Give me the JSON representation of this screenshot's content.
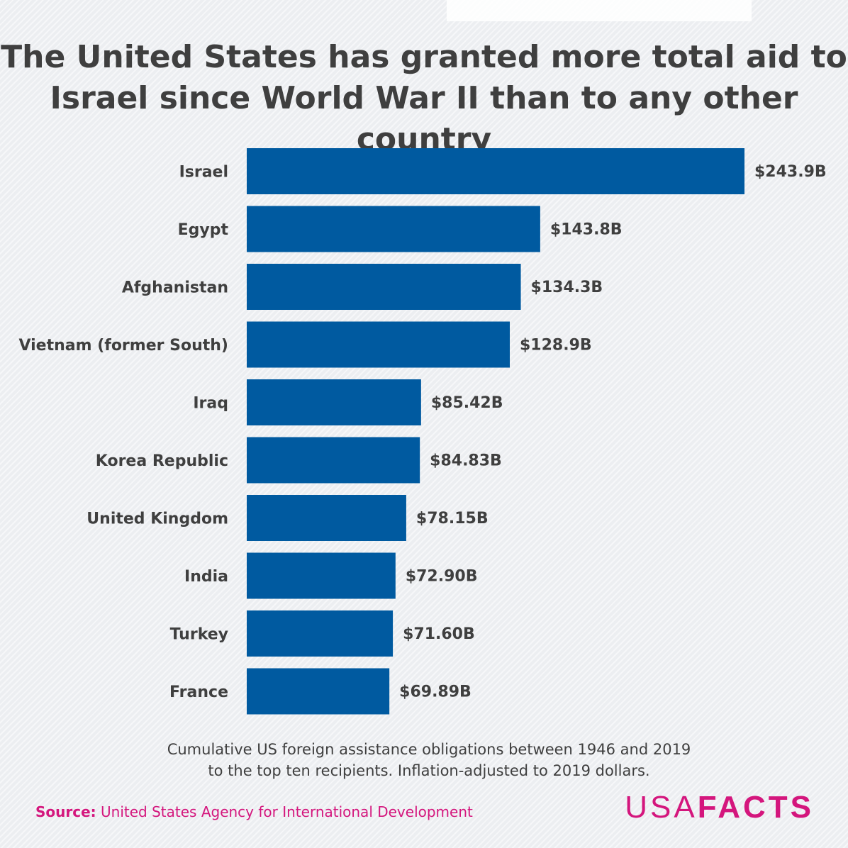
{
  "title": {
    "line1": "The United States has granted more total aid to",
    "line2": "Israel since World War II than to any other country"
  },
  "chart_data": {
    "type": "bar",
    "orientation": "horizontal",
    "categories": [
      "Israel",
      "Egypt",
      "Afghanistan",
      "Vietnam (former South)",
      "Iraq",
      "Korea Republic",
      "United Kingdom",
      "India",
      "Turkey",
      "France"
    ],
    "values": [
      243.9,
      143.8,
      134.3,
      128.9,
      85.42,
      84.83,
      78.15,
      72.9,
      71.6,
      69.89
    ],
    "value_labels": [
      "$243.9B",
      "$143.8B",
      "$134.3B",
      "$128.9B",
      "$85.42B",
      "$84.83B",
      "$78.15B",
      "$72.90B",
      "$71.60B",
      "$69.89B"
    ],
    "bar_color": "#005aa0",
    "grid": false,
    "xlim": [
      0,
      243.9
    ]
  },
  "note": {
    "line1": "Cumulative US foreign assistance obligations between 1946 and 2019",
    "line2": "to the top ten recipients. Inflation-adjusted to 2019 dollars."
  },
  "source": {
    "label": "Source:",
    "text": "United States Agency for International Development"
  },
  "logo": {
    "usa": "USA",
    "facts": "FACTS"
  },
  "colors": {
    "accent": "#d4167d",
    "text": "#3f3f3f"
  }
}
